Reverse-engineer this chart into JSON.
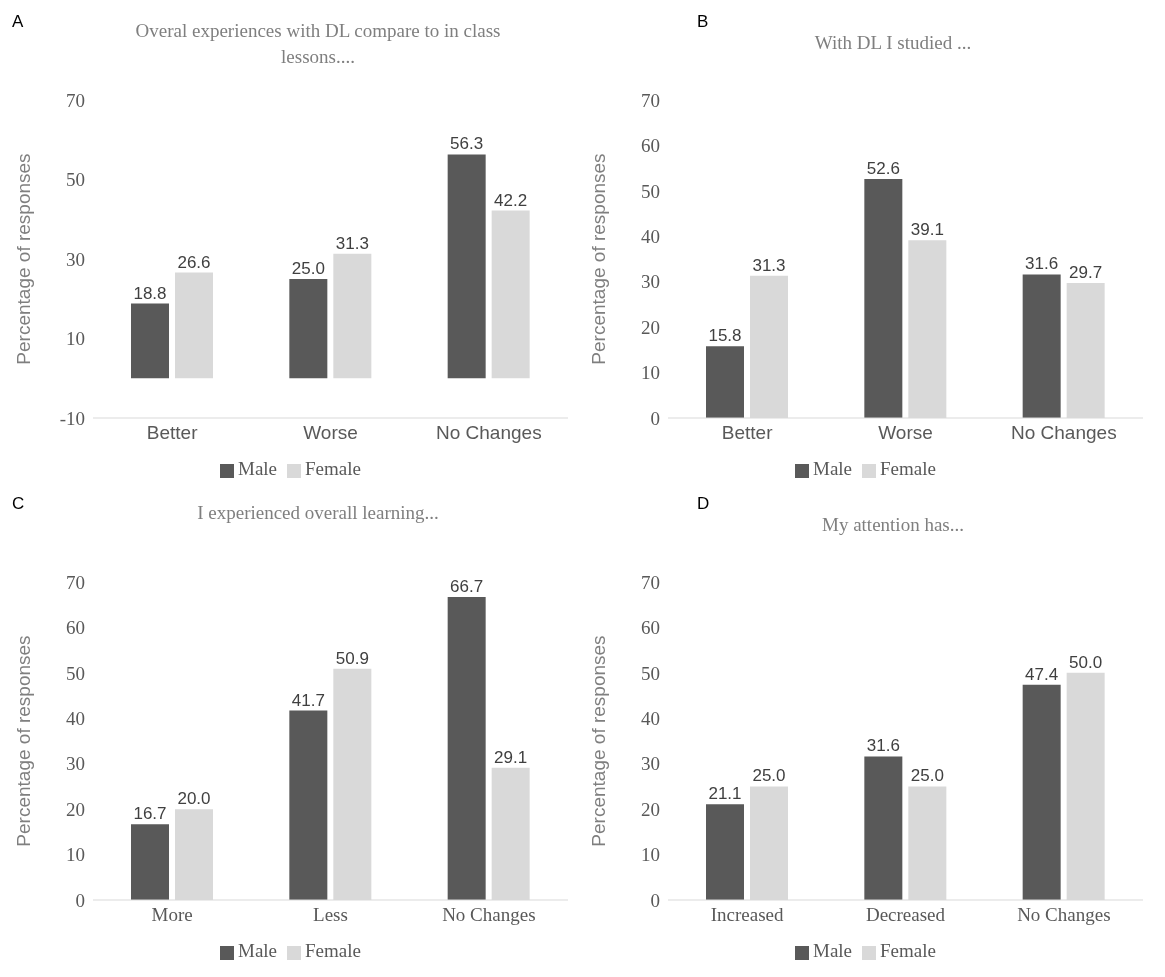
{
  "chart_data": [
    {
      "type": "bar",
      "title": "Overal experiences with DL compare to in class lessons....",
      "ylabel": "Percentage of responses",
      "annotations": [
        "A"
      ],
      "categories": [
        "Better",
        "Worse",
        "No Changes"
      ],
      "ylim": [
        -10,
        70
      ],
      "yticks": [
        -10,
        10,
        30,
        50,
        70
      ],
      "grid": false,
      "legend": "bottom",
      "series": [
        {
          "name": "Male",
          "color": "#595959",
          "values": [
            18.8,
            25.0,
            56.3
          ],
          "value_labels": [
            "18.8",
            "25.0",
            "56.3"
          ]
        },
        {
          "name": "Female",
          "color": "#d9d9d9",
          "values": [
            26.6,
            31.3,
            42.2
          ],
          "value_labels": [
            "26.6",
            "31.3",
            "42.2"
          ]
        }
      ]
    },
    {
      "type": "bar",
      "title": "With DL I studied ...",
      "ylabel": "Percentage of responses",
      "annotations": [
        "B"
      ],
      "categories": [
        "Better",
        "Worse",
        "No Changes"
      ],
      "ylim": [
        0,
        70
      ],
      "yticks": [
        0,
        10,
        20,
        30,
        40,
        50,
        60,
        70
      ],
      "grid": false,
      "legend": "bottom",
      "series": [
        {
          "name": "Male",
          "color": "#595959",
          "values": [
            15.8,
            52.6,
            31.6
          ],
          "value_labels": [
            "15.8",
            "52.6",
            "31.6"
          ]
        },
        {
          "name": "Female",
          "color": "#d9d9d9",
          "values": [
            31.3,
            39.1,
            29.7
          ],
          "value_labels": [
            "31.3",
            "39.1",
            "29.7"
          ]
        }
      ]
    },
    {
      "type": "bar",
      "title": "I experienced overall learning...",
      "ylabel": "Percentage of responses",
      "annotations": [
        "C"
      ],
      "categories": [
        "More",
        "Less",
        "No Changes"
      ],
      "ylim": [
        0,
        70
      ],
      "yticks": [
        0,
        10,
        20,
        30,
        40,
        50,
        60,
        70
      ],
      "grid": false,
      "legend": "bottom",
      "series": [
        {
          "name": "Male",
          "color": "#595959",
          "values": [
            16.7,
            41.7,
            66.7
          ],
          "value_labels": [
            "16.7",
            "41.7",
            "66.7"
          ]
        },
        {
          "name": "Female",
          "color": "#d9d9d9",
          "values": [
            20.0,
            50.9,
            29.1
          ],
          "value_labels": [
            "20.0",
            "50.9",
            "29.1"
          ]
        }
      ]
    },
    {
      "type": "bar",
      "title": "My attention has...",
      "ylabel": "Percentage of responses",
      "annotations": [
        "D"
      ],
      "categories": [
        "Increased",
        "Decreased",
        "No Changes"
      ],
      "ylim": [
        0,
        70
      ],
      "yticks": [
        0,
        10,
        20,
        30,
        40,
        50,
        60,
        70
      ],
      "grid": false,
      "legend": "bottom",
      "series": [
        {
          "name": "Male",
          "color": "#595959",
          "values": [
            21.1,
            31.6,
            47.4
          ],
          "value_labels": [
            "21.1",
            "31.6",
            "47.4"
          ]
        },
        {
          "name": "Female",
          "color": "#d9d9d9",
          "values": [
            25.0,
            25.0,
            50.0
          ],
          "value_labels": [
            "25.0",
            "25.0",
            "50.0"
          ]
        }
      ]
    }
  ]
}
